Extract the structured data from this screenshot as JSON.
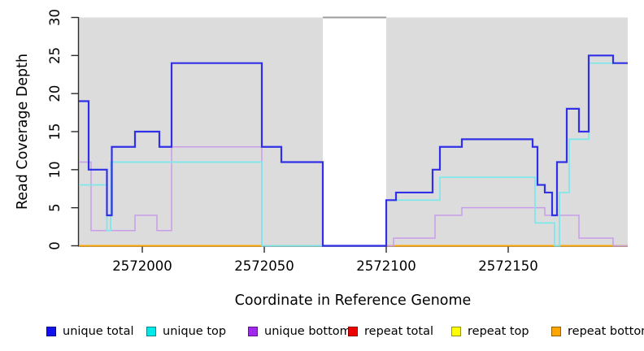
{
  "chart_data": {
    "type": "line",
    "subtype": "step",
    "title": "",
    "xlabel": "Coordinate in Reference Genome",
    "ylabel": "Read Coverage Depth",
    "xlim": [
      2571974,
      2572199
    ],
    "ylim": [
      0,
      30
    ],
    "x_ticks": [
      2572000,
      2572050,
      2572100,
      2572150
    ],
    "y_ticks": [
      0,
      5,
      10,
      15,
      20,
      25,
      30
    ],
    "grid": false,
    "legend_position": "bottom",
    "background_regions": {
      "color": "#dcdcdc",
      "spans": [
        [
          2571974,
          2572074
        ],
        [
          2572100,
          2572199
        ]
      ]
    },
    "gap_top_line": {
      "span": [
        2572074,
        2572100
      ],
      "y": 30,
      "color": "#9c9c9c"
    },
    "axis_color": "#2b2b2b",
    "draw_order": [
      3,
      4,
      5,
      2,
      1,
      0
    ],
    "series": [
      {
        "id": "unique-total",
        "name": "unique total",
        "line_color": "#3030e6",
        "line_width": 2.2,
        "steps": [
          [
            2571974,
            19
          ],
          [
            2571978,
            10
          ],
          [
            2571985.5,
            4
          ],
          [
            2571987.5,
            13
          ],
          [
            2571997,
            15
          ],
          [
            2572007,
            13
          ],
          [
            2572012,
            24
          ],
          [
            2572049,
            13
          ],
          [
            2572057,
            11
          ],
          [
            2572074,
            0
          ],
          [
            2572100,
            6
          ],
          [
            2572104,
            7
          ],
          [
            2572119,
            10
          ],
          [
            2572122,
            13
          ],
          [
            2572131,
            14
          ],
          [
            2572160,
            13
          ],
          [
            2572162,
            8
          ],
          [
            2572165,
            7
          ],
          [
            2572168,
            4
          ],
          [
            2572170,
            11
          ],
          [
            2572174,
            18
          ],
          [
            2572179,
            15
          ],
          [
            2572183,
            25
          ],
          [
            2572193,
            24
          ]
        ]
      },
      {
        "id": "unique-top",
        "name": "unique top",
        "line_color": "#79e8ed",
        "line_width": 1.7,
        "steps": [
          [
            2571974,
            8
          ],
          [
            2571985.5,
            2
          ],
          [
            2571987,
            11
          ],
          [
            2572049,
            0
          ],
          [
            2572100,
            6
          ],
          [
            2572122,
            9
          ],
          [
            2572161,
            3
          ],
          [
            2572169,
            0
          ],
          [
            2572171,
            7
          ],
          [
            2572175,
            14
          ],
          [
            2572183,
            24
          ]
        ]
      },
      {
        "id": "unique-bottom",
        "name": "unique bottom",
        "line_color": "#c89de9",
        "line_width": 1.5,
        "steps": [
          [
            2571974,
            11
          ],
          [
            2571979,
            2
          ],
          [
            2571997,
            4
          ],
          [
            2572006,
            2
          ],
          [
            2572012,
            13
          ],
          [
            2572049,
            0
          ],
          [
            2572103,
            1
          ],
          [
            2572120,
            4
          ],
          [
            2572131,
            5
          ],
          [
            2572165,
            4
          ],
          [
            2572179,
            1
          ],
          [
            2572193,
            0
          ]
        ]
      },
      {
        "id": "repeat-total",
        "name": "repeat total",
        "line_color": "#e00000",
        "line_width": 1.5,
        "steps": [
          [
            2571974,
            0
          ]
        ]
      },
      {
        "id": "repeat-top",
        "name": "repeat top",
        "line_color": "#ffff00",
        "line_width": 1.5,
        "steps": [
          [
            2571974,
            0
          ]
        ]
      },
      {
        "id": "repeat-bottom",
        "name": "repeat bottom",
        "line_color": "#ffa500",
        "line_width": 1.8,
        "steps": [
          [
            2571974,
            0
          ]
        ]
      }
    ],
    "legend": {
      "items": [
        {
          "label": "unique total",
          "color": "#1111ee"
        },
        {
          "label": "unique top",
          "color": "#00e8e8"
        },
        {
          "label": "unique bottom",
          "color": "#a228f0"
        },
        {
          "label": "repeat total",
          "color": "#ee0000"
        },
        {
          "label": "repeat top",
          "color": "#ffff00"
        },
        {
          "label": "repeat bottom",
          "color": "#ffa500"
        }
      ]
    }
  }
}
